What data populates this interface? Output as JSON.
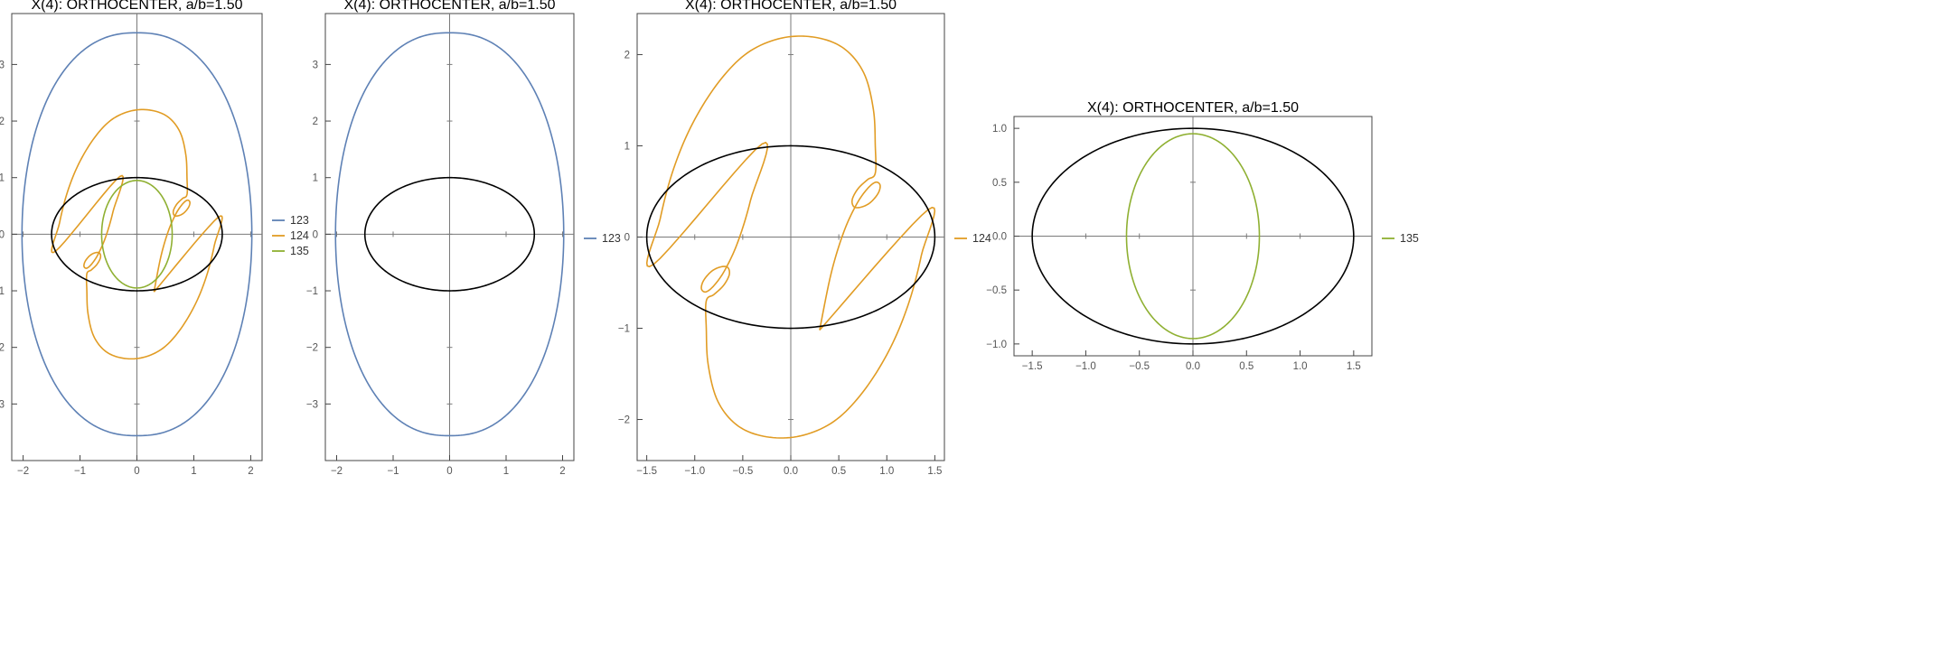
{
  "colors": {
    "123": "#5E81B5",
    "124": "#E19C24",
    "135": "#8FB032",
    "ellipse": "#000000",
    "axis": "#7a7a7a",
    "frame": "#444444"
  },
  "chart_data": [
    {
      "type": "line",
      "title": "X(4): ORTHOCENTER, a/b=1.50",
      "xlabel": "",
      "ylabel": "",
      "xlim": [
        -2.2,
        2.2
      ],
      "ylim": [
        -4.0,
        3.9
      ],
      "xticks": [
        -2,
        -1,
        0,
        1,
        2
      ],
      "xtick_labels": [
        "−2",
        "−1",
        "0",
        "1",
        "2"
      ],
      "yticks": [
        -3,
        -2,
        -1,
        0,
        1,
        2,
        3
      ],
      "ytick_labels": [
        "−3",
        "−2",
        "−1",
        "0",
        "1",
        "2",
        "3"
      ],
      "grid": false,
      "legend": "right",
      "ellipse": {
        "a": 1.5,
        "b": 1.0
      },
      "series": [
        {
          "name": "123",
          "key": "123",
          "shape": "oval",
          "extent_x": 2.02,
          "extent_y": 3.56
        },
        {
          "name": "124",
          "key": "124",
          "shape": "loop"
        },
        {
          "name": "135",
          "key": "135",
          "shape": "inner-ellipse",
          "extent_x": 0.62,
          "extent_y": 0.95
        }
      ]
    },
    {
      "type": "line",
      "title": "X(4): ORTHOCENTER, a/b=1.50",
      "xlabel": "",
      "ylabel": "",
      "xlim": [
        -2.2,
        2.2
      ],
      "ylim": [
        -4.0,
        3.9
      ],
      "xticks": [
        -2,
        -1,
        0,
        1,
        2
      ],
      "xtick_labels": [
        "−2",
        "−1",
        "0",
        "1",
        "2"
      ],
      "yticks": [
        -3,
        -2,
        -1,
        0,
        1,
        2,
        3
      ],
      "ytick_labels": [
        "−3",
        "−2",
        "−1",
        "0",
        "1",
        "2",
        "3"
      ],
      "grid": false,
      "legend": "right",
      "ellipse": {
        "a": 1.5,
        "b": 1.0
      },
      "series": [
        {
          "name": "123",
          "key": "123",
          "shape": "oval",
          "extent_x": 2.02,
          "extent_y": 3.56
        }
      ]
    },
    {
      "type": "line",
      "title": "X(4): ORTHOCENTER, a/b=1.50",
      "xlabel": "",
      "ylabel": "",
      "xlim": [
        -1.6,
        1.6
      ],
      "ylim": [
        -2.45,
        2.45
      ],
      "xticks": [
        -1.5,
        -1.0,
        -0.5,
        0,
        0.5,
        1.0,
        1.5
      ],
      "xtick_labels": [
        "−1.5",
        "−1.0",
        "−0.5",
        "0.0",
        "0.5",
        "1.0",
        "1.5"
      ],
      "yticks": [
        -2,
        -1,
        0,
        1,
        2
      ],
      "ytick_labels": [
        "−2",
        "−1",
        "0",
        "1",
        "2"
      ],
      "grid": false,
      "legend": "right",
      "ellipse": {
        "a": 1.5,
        "b": 1.0
      },
      "series": [
        {
          "name": "124",
          "key": "124",
          "shape": "loop"
        }
      ]
    },
    {
      "type": "line",
      "title": "X(4): ORTHOCENTER, a/b=1.50",
      "xlabel": "",
      "ylabel": "",
      "xlim": [
        -1.67,
        1.67
      ],
      "ylim": [
        -1.11,
        1.11
      ],
      "xticks": [
        -1.5,
        -1.0,
        -0.5,
        0,
        0.5,
        1.0,
        1.5
      ],
      "xtick_labels": [
        "−1.5",
        "−1.0",
        "−0.5",
        "0.0",
        "0.5",
        "1.0",
        "1.5"
      ],
      "yticks": [
        -1.0,
        -0.5,
        0,
        0.5,
        1.0
      ],
      "ytick_labels": [
        "−1.0",
        "−0.5",
        "0.0",
        "0.5",
        "1.0"
      ],
      "grid": false,
      "legend": "right",
      "ellipse": {
        "a": 1.5,
        "b": 1.0
      },
      "series": [
        {
          "name": "135",
          "key": "135",
          "shape": "inner-ellipse",
          "extent_x": 0.62,
          "extent_y": 0.95
        }
      ]
    }
  ]
}
